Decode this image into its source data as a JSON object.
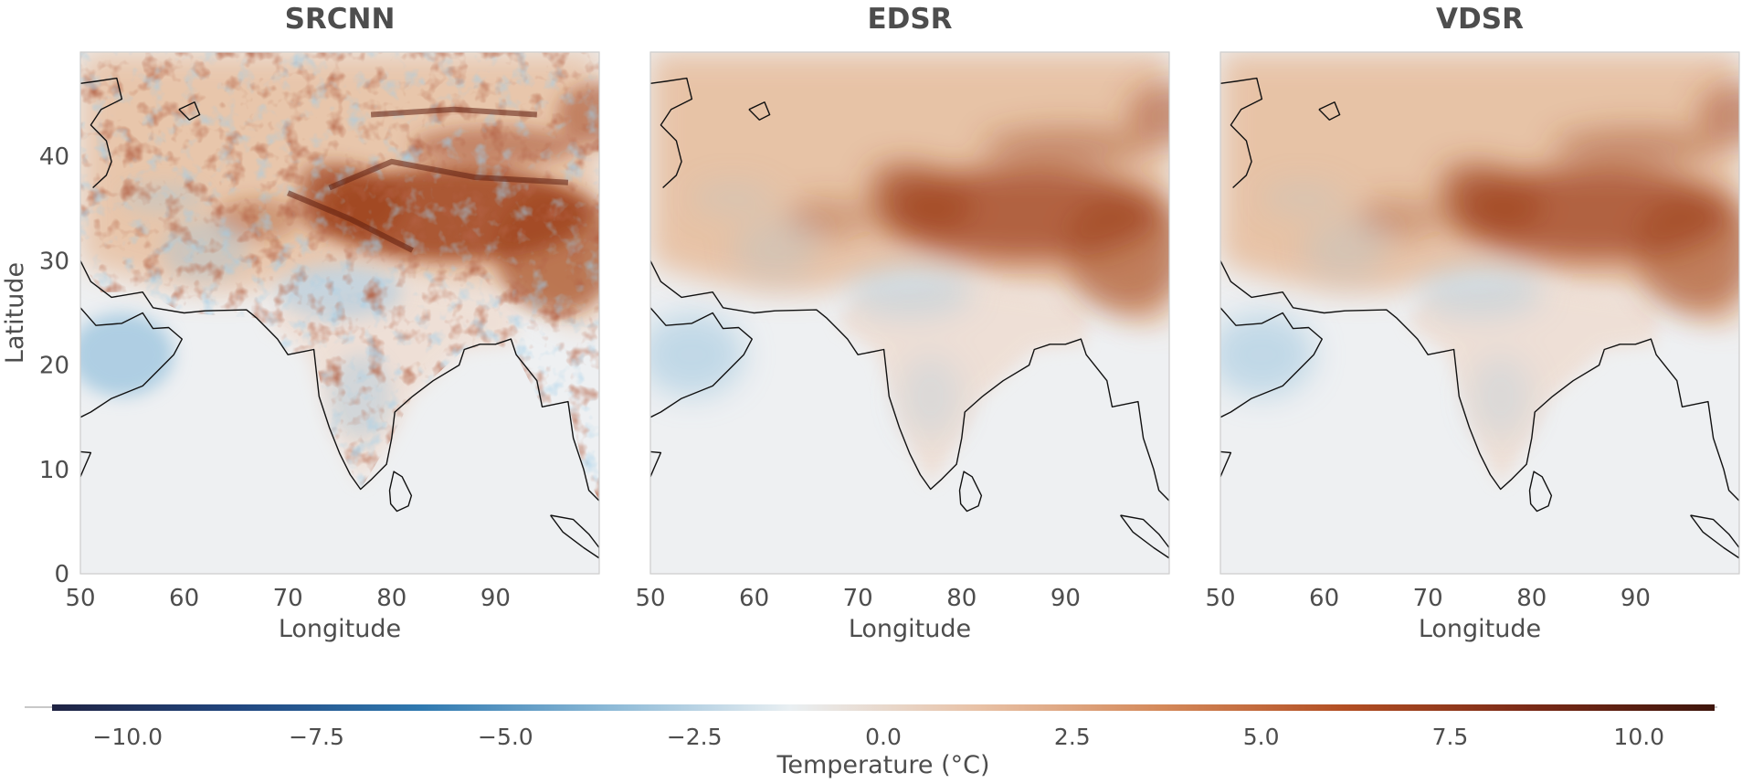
{
  "chart_data": {
    "type": "heatmap",
    "panels": [
      {
        "title": "SRCNN",
        "variant": "noisy"
      },
      {
        "title": "EDSR",
        "variant": "smooth"
      },
      {
        "title": "VDSR",
        "variant": "smooth"
      }
    ],
    "xlabel": "Longitude",
    "ylabel": "Latitude",
    "xlim": [
      50,
      100
    ],
    "ylim": [
      0,
      50
    ],
    "xticks": [
      "50",
      "60",
      "70",
      "80",
      "90"
    ],
    "yticks": [
      "0",
      "10",
      "20",
      "30",
      "40"
    ],
    "colorbar": {
      "label": "Temperature (°C)",
      "range": [
        -11,
        11
      ],
      "ticks": [
        "−10.0",
        "−7.5",
        "−5.0",
        "−2.5",
        "0.0",
        "2.5",
        "5.0",
        "7.5",
        "10.0"
      ],
      "tick_values": [
        -10,
        -7.5,
        -5,
        -2.5,
        0,
        2.5,
        5,
        7.5,
        10
      ],
      "colormap": [
        "#1f2343",
        "#21467f",
        "#2f79b0",
        "#8ab8d6",
        "#e9eff2",
        "#e8c2a7",
        "#d4895a",
        "#b24e23",
        "#7a2a17",
        "#3e150c"
      ]
    },
    "grid": false,
    "coastlines": true
  }
}
